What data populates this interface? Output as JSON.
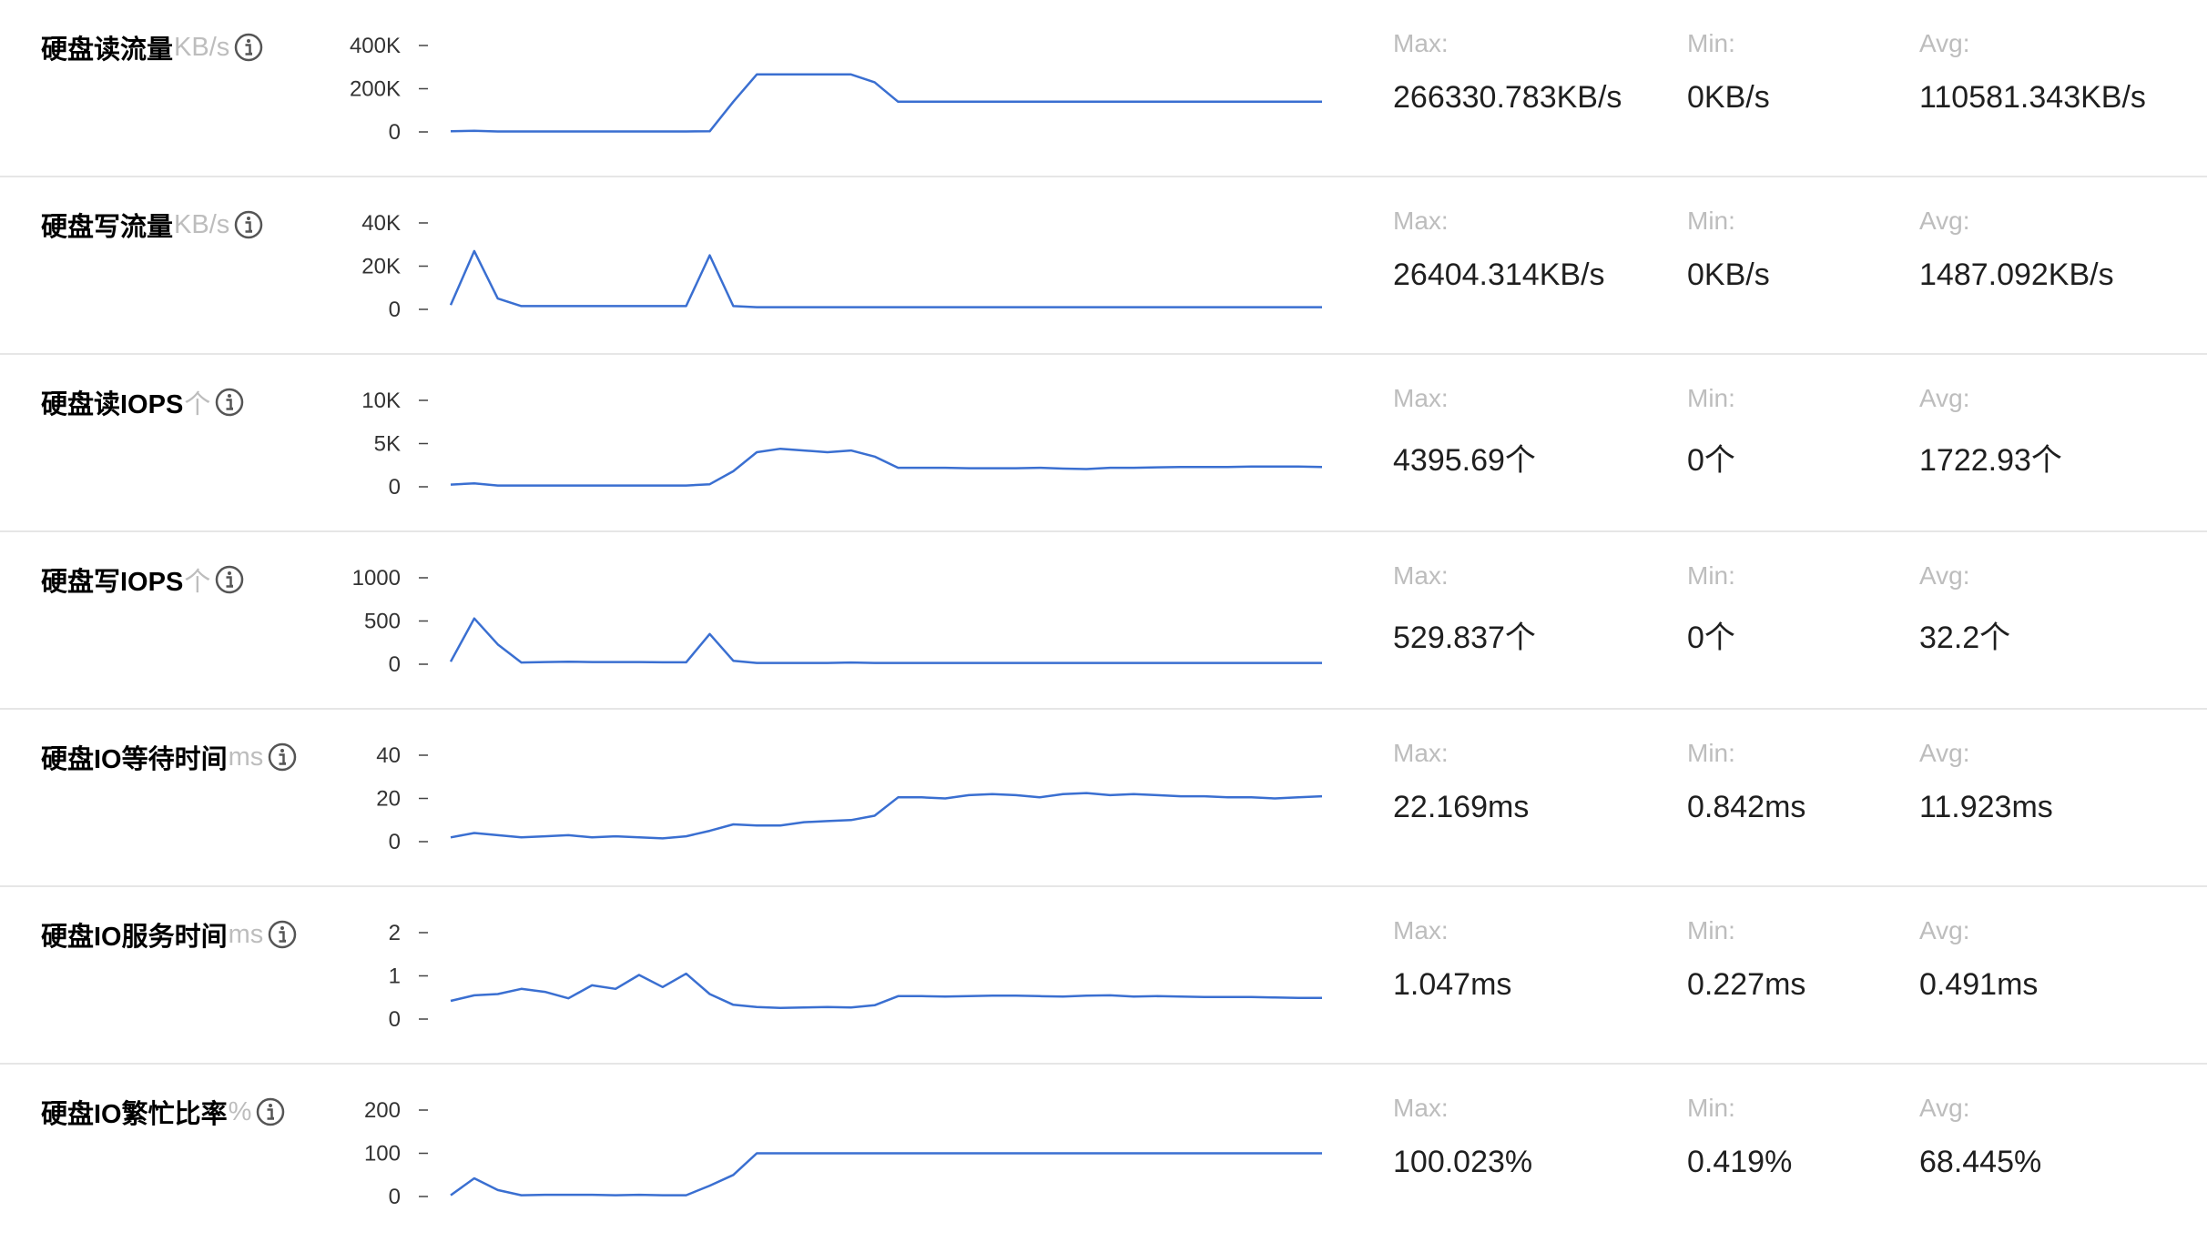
{
  "metrics": [
    {
      "title": "硬盘读流量",
      "unit": "KB/s",
      "stats": [
        {
          "label": "Max:",
          "value": "266330.783KB/s"
        },
        {
          "label": "Min:",
          "value": "0KB/s"
        },
        {
          "label": "Avg:",
          "value": "110581.343KB/s"
        }
      ]
    },
    {
      "title": "硬盘写流量",
      "unit": "KB/s",
      "stats": [
        {
          "label": "Max:",
          "value": "26404.314KB/s"
        },
        {
          "label": "Min:",
          "value": "0KB/s"
        },
        {
          "label": "Avg:",
          "value": "1487.092KB/s"
        }
      ]
    },
    {
      "title": "硬盘读IOPS",
      "unit": "个",
      "stats": [
        {
          "label": "Max:",
          "value": "4395.69个"
        },
        {
          "label": "Min:",
          "value": "0个"
        },
        {
          "label": "Avg:",
          "value": "1722.93个"
        }
      ]
    },
    {
      "title": "硬盘写IOPS",
      "unit": "个",
      "stats": [
        {
          "label": "Max:",
          "value": "529.837个"
        },
        {
          "label": "Min:",
          "value": "0个"
        },
        {
          "label": "Avg:",
          "value": "32.2个"
        }
      ]
    },
    {
      "title": "硬盘IO等待时间",
      "unit": "ms",
      "stats": [
        {
          "label": "Max:",
          "value": "22.169ms"
        },
        {
          "label": "Min:",
          "value": "0.842ms"
        },
        {
          "label": "Avg:",
          "value": "11.923ms"
        }
      ]
    },
    {
      "title": "硬盘IO服务时间",
      "unit": "ms",
      "stats": [
        {
          "label": "Max:",
          "value": "1.047ms"
        },
        {
          "label": "Min:",
          "value": "0.227ms"
        },
        {
          "label": "Avg:",
          "value": "0.491ms"
        }
      ]
    },
    {
      "title": "硬盘IO繁忙比率",
      "unit": "%",
      "stats": [
        {
          "label": "Max:",
          "value": "100.023%"
        },
        {
          "label": "Min:",
          "value": "0.419%"
        },
        {
          "label": "Avg:",
          "value": "68.445%"
        }
      ]
    }
  ],
  "colors": {
    "line": "#3a6fd1",
    "tick": "#444444",
    "axis_label": "#333333",
    "unit": "#bdbdbd",
    "label": "#bdbdbd",
    "divider": "#e6e6e6"
  },
  "icons": {
    "info": "info-circle-icon"
  },
  "chart_data": [
    {
      "type": "line",
      "ylim": [
        0,
        400000
      ],
      "yticks": [
        0,
        200000,
        400000
      ],
      "ytick_labels": [
        "0",
        "200K",
        "400K"
      ],
      "x": [
        0,
        1,
        2,
        3,
        4,
        5,
        6,
        7,
        8,
        9,
        10,
        11,
        12,
        13,
        14,
        15,
        16,
        17,
        18,
        19,
        20,
        21,
        22,
        23,
        24,
        25,
        26,
        27,
        28,
        29,
        30,
        31,
        32,
        33,
        34,
        35,
        36,
        37
      ],
      "values": [
        3000,
        5000,
        2000,
        2000,
        2000,
        2000,
        2000,
        2000,
        2000,
        2000,
        2000,
        3000,
        140000,
        266000,
        266000,
        266000,
        266000,
        266000,
        230000,
        140000,
        140000,
        140000,
        140000,
        140000,
        140000,
        140000,
        140000,
        140000,
        140000,
        140000,
        140000,
        140000,
        140000,
        140000,
        140000,
        140000,
        140000,
        140000
      ]
    },
    {
      "type": "line",
      "ylim": [
        0,
        40000
      ],
      "yticks": [
        0,
        20000,
        40000
      ],
      "ytick_labels": [
        "0",
        "20K",
        "40K"
      ],
      "x": [
        0,
        1,
        2,
        3,
        4,
        5,
        6,
        7,
        8,
        9,
        10,
        11,
        12,
        13,
        14,
        15,
        16,
        17,
        18,
        19,
        20,
        21,
        22,
        23,
        24,
        25,
        26,
        27,
        28,
        29,
        30,
        31,
        32,
        33,
        34,
        35,
        36,
        37
      ],
      "values": [
        2000,
        27000,
        5000,
        1500,
        1500,
        1500,
        1500,
        1500,
        1500,
        1500,
        1500,
        25000,
        1500,
        1000,
        1000,
        1000,
        1000,
        1000,
        1000,
        1000,
        1000,
        1000,
        1000,
        1000,
        1000,
        1000,
        1000,
        1000,
        1000,
        1000,
        1000,
        1000,
        1000,
        1000,
        1000,
        1000,
        1000,
        1000
      ]
    },
    {
      "type": "line",
      "ylim": [
        0,
        10000
      ],
      "yticks": [
        0,
        5000,
        10000
      ],
      "ytick_labels": [
        "0",
        "5K",
        "10K"
      ],
      "x": [
        0,
        1,
        2,
        3,
        4,
        5,
        6,
        7,
        8,
        9,
        10,
        11,
        12,
        13,
        14,
        15,
        16,
        17,
        18,
        19,
        20,
        21,
        22,
        23,
        24,
        25,
        26,
        27,
        28,
        29,
        30,
        31,
        32,
        33,
        34,
        35,
        36,
        37
      ],
      "values": [
        250,
        400,
        150,
        150,
        150,
        150,
        150,
        150,
        150,
        150,
        150,
        300,
        1800,
        4000,
        4400,
        4200,
        4000,
        4200,
        3500,
        2200,
        2200,
        2200,
        2150,
        2150,
        2150,
        2200,
        2100,
        2050,
        2200,
        2200,
        2250,
        2300,
        2300,
        2300,
        2350,
        2350,
        2350,
        2300
      ]
    },
    {
      "type": "line",
      "ylim": [
        0,
        1000
      ],
      "yticks": [
        0,
        500,
        1000
      ],
      "ytick_labels": [
        "0",
        "500",
        "1000"
      ],
      "x": [
        0,
        1,
        2,
        3,
        4,
        5,
        6,
        7,
        8,
        9,
        10,
        11,
        12,
        13,
        14,
        15,
        16,
        17,
        18,
        19,
        20,
        21,
        22,
        23,
        24,
        25,
        26,
        27,
        28,
        29,
        30,
        31,
        32,
        33,
        34,
        35,
        36,
        37
      ],
      "values": [
        30,
        530,
        230,
        20,
        25,
        30,
        25,
        25,
        25,
        22,
        22,
        350,
        40,
        15,
        15,
        15,
        15,
        20,
        15,
        15,
        15,
        15,
        15,
        15,
        15,
        15,
        15,
        15,
        15,
        15,
        15,
        15,
        15,
        15,
        15,
        15,
        15,
        15
      ]
    },
    {
      "type": "line",
      "ylim": [
        0,
        40
      ],
      "yticks": [
        0,
        20,
        40
      ],
      "ytick_labels": [
        "0",
        "20",
        "40"
      ],
      "x": [
        0,
        1,
        2,
        3,
        4,
        5,
        6,
        7,
        8,
        9,
        10,
        11,
        12,
        13,
        14,
        15,
        16,
        17,
        18,
        19,
        20,
        21,
        22,
        23,
        24,
        25,
        26,
        27,
        28,
        29,
        30,
        31,
        32,
        33,
        34,
        35,
        36,
        37
      ],
      "values": [
        2,
        4,
        3,
        2,
        2.5,
        3,
        2,
        2.5,
        2,
        1.5,
        2.5,
        5,
        8,
        7.5,
        7.5,
        9,
        9.5,
        10,
        12,
        20.5,
        20.5,
        20,
        21.5,
        22,
        21.5,
        20.5,
        22,
        22.5,
        21.5,
        22,
        21.5,
        21,
        21,
        20.5,
        20.5,
        20,
        20.5,
        21
      ]
    },
    {
      "type": "line",
      "ylim": [
        0,
        2
      ],
      "yticks": [
        0,
        1,
        2
      ],
      "ytick_labels": [
        "0",
        "1",
        "2"
      ],
      "x": [
        0,
        1,
        2,
        3,
        4,
        5,
        6,
        7,
        8,
        9,
        10,
        11,
        12,
        13,
        14,
        15,
        16,
        17,
        18,
        19,
        20,
        21,
        22,
        23,
        24,
        25,
        26,
        27,
        28,
        29,
        30,
        31,
        32,
        33,
        34,
        35,
        36,
        37
      ],
      "values": [
        0.42,
        0.55,
        0.58,
        0.7,
        0.63,
        0.48,
        0.78,
        0.7,
        1.02,
        0.74,
        1.05,
        0.58,
        0.33,
        0.28,
        0.26,
        0.27,
        0.28,
        0.27,
        0.32,
        0.53,
        0.53,
        0.52,
        0.53,
        0.54,
        0.54,
        0.53,
        0.52,
        0.54,
        0.55,
        0.52,
        0.53,
        0.52,
        0.51,
        0.51,
        0.51,
        0.5,
        0.49,
        0.49
      ]
    },
    {
      "type": "line",
      "ylim": [
        0,
        200
      ],
      "yticks": [
        0,
        100,
        200
      ],
      "ytick_labels": [
        "0",
        "100",
        "200"
      ],
      "x": [
        0,
        1,
        2,
        3,
        4,
        5,
        6,
        7,
        8,
        9,
        10,
        11,
        12,
        13,
        14,
        15,
        16,
        17,
        18,
        19,
        20,
        21,
        22,
        23,
        24,
        25,
        26,
        27,
        28,
        29,
        30,
        31,
        32,
        33,
        34,
        35,
        36,
        37
      ],
      "values": [
        3,
        42,
        15,
        3,
        4,
        4,
        4,
        3,
        4,
        3,
        3,
        25,
        50,
        100,
        100,
        100,
        100,
        100,
        100,
        100,
        100,
        100,
        100,
        100,
        100,
        100,
        100,
        100,
        100,
        100,
        100,
        100,
        100,
        100,
        100,
        100,
        100,
        100
      ]
    }
  ]
}
